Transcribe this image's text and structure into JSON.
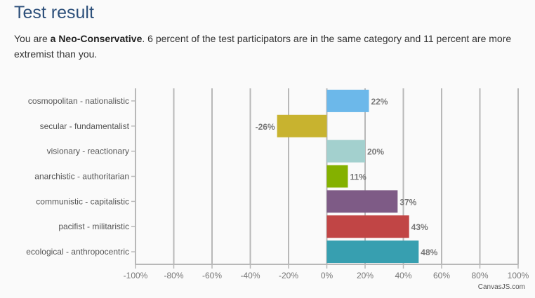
{
  "page": {
    "title": "Test result",
    "intro_prefix": "You are ",
    "intro_bold": "a Neo-Conservative",
    "intro_suffix": ". 6 percent of the test participators are in the same category and 11 percent are more extremist than you."
  },
  "credit": "CanvasJS.com",
  "chart_data": {
    "type": "bar",
    "orientation": "horizontal",
    "categories": [
      "cosmopolitan - nationalistic",
      "secular - fundamentalist",
      "visionary - reactionary",
      "anarchistic - authoritarian",
      "communistic - capitalistic",
      "pacifist - militaristic",
      "ecological - anthropocentric"
    ],
    "values": [
      22,
      -26,
      20,
      11,
      37,
      43,
      48
    ],
    "data_labels": [
      "22%",
      "-26%",
      "20%",
      "11%",
      "37%",
      "43%",
      "48%"
    ],
    "colors": [
      "#6cb8ea",
      "#c8b32f",
      "#a3d0ce",
      "#84b100",
      "#7e5b86",
      "#c14545",
      "#379fb0"
    ],
    "xlim": [
      -100,
      100
    ],
    "x_ticks": [
      -100,
      -80,
      -60,
      -40,
      -20,
      0,
      20,
      40,
      60,
      80,
      100
    ],
    "x_tick_labels": [
      "-100%",
      "-80%",
      "-60%",
      "-40%",
      "-20%",
      "0%",
      "20%",
      "40%",
      "60%",
      "80%",
      "100%"
    ],
    "grid": true
  }
}
